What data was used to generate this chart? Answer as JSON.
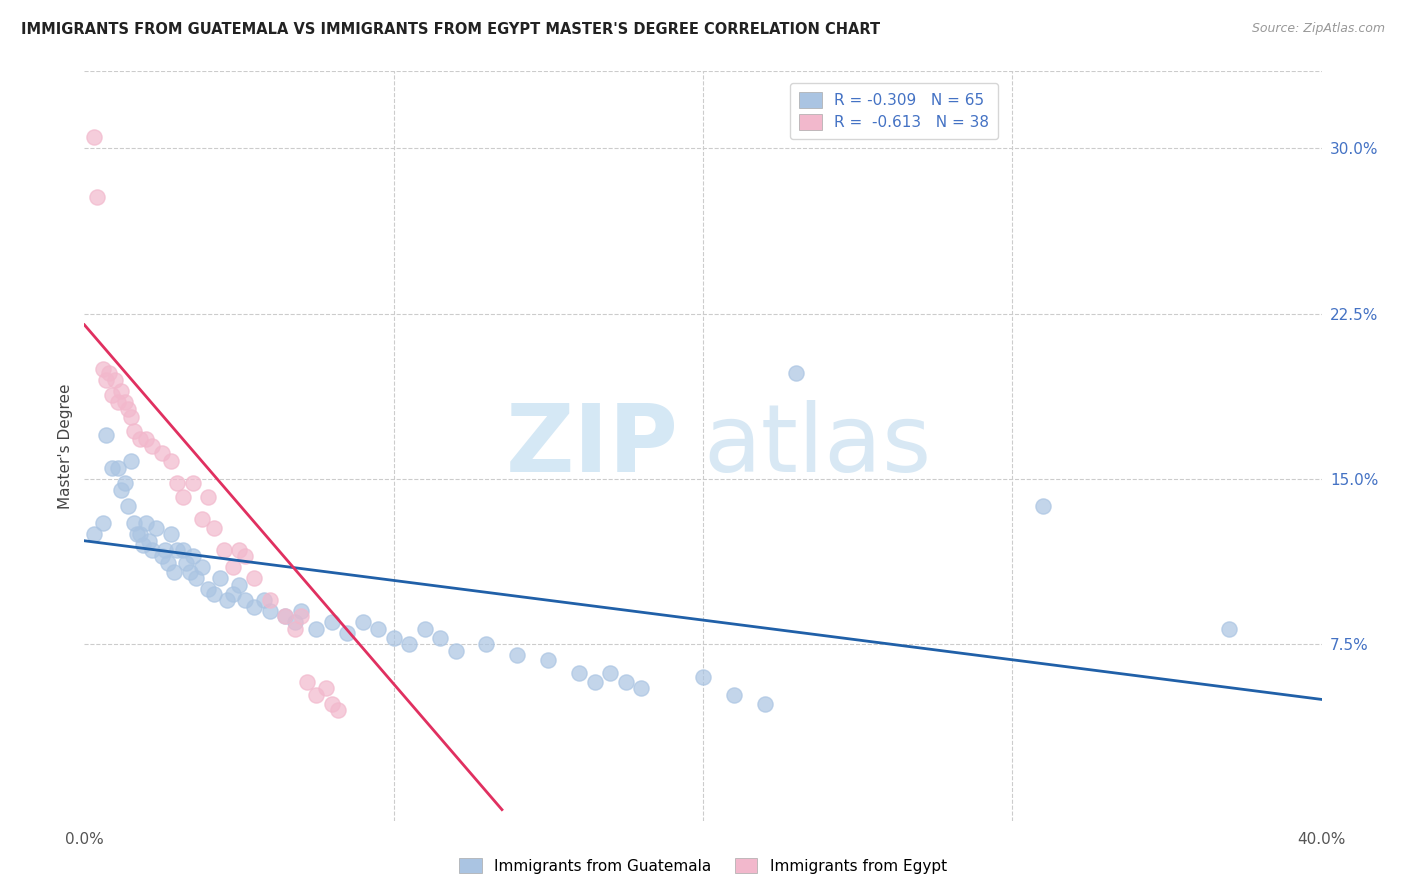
{
  "title": "IMMIGRANTS FROM GUATEMALA VS IMMIGRANTS FROM EGYPT MASTER'S DEGREE CORRELATION CHART",
  "source": "Source: ZipAtlas.com",
  "ylabel": "Master's Degree",
  "right_yticks": [
    "30.0%",
    "22.5%",
    "15.0%",
    "7.5%"
  ],
  "right_ytick_vals": [
    0.3,
    0.225,
    0.15,
    0.075
  ],
  "xlim": [
    0.0,
    0.4
  ],
  "ylim": [
    -0.005,
    0.335
  ],
  "color_guatemala": "#aac4e2",
  "color_egypt": "#f2b8cc",
  "line_color_guatemala": "#2060a8",
  "line_color_egypt": "#e03060",
  "watermark_zip": "ZIP",
  "watermark_atlas": "atlas",
  "guatemala_points": [
    [
      0.003,
      0.125
    ],
    [
      0.006,
      0.13
    ],
    [
      0.007,
      0.17
    ],
    [
      0.009,
      0.155
    ],
    [
      0.011,
      0.155
    ],
    [
      0.012,
      0.145
    ],
    [
      0.013,
      0.148
    ],
    [
      0.014,
      0.138
    ],
    [
      0.015,
      0.158
    ],
    [
      0.016,
      0.13
    ],
    [
      0.017,
      0.125
    ],
    [
      0.018,
      0.125
    ],
    [
      0.019,
      0.12
    ],
    [
      0.02,
      0.13
    ],
    [
      0.021,
      0.122
    ],
    [
      0.022,
      0.118
    ],
    [
      0.023,
      0.128
    ],
    [
      0.025,
      0.115
    ],
    [
      0.026,
      0.118
    ],
    [
      0.027,
      0.112
    ],
    [
      0.028,
      0.125
    ],
    [
      0.029,
      0.108
    ],
    [
      0.03,
      0.118
    ],
    [
      0.032,
      0.118
    ],
    [
      0.033,
      0.112
    ],
    [
      0.034,
      0.108
    ],
    [
      0.035,
      0.115
    ],
    [
      0.036,
      0.105
    ],
    [
      0.038,
      0.11
    ],
    [
      0.04,
      0.1
    ],
    [
      0.042,
      0.098
    ],
    [
      0.044,
      0.105
    ],
    [
      0.046,
      0.095
    ],
    [
      0.048,
      0.098
    ],
    [
      0.05,
      0.102
    ],
    [
      0.052,
      0.095
    ],
    [
      0.055,
      0.092
    ],
    [
      0.058,
      0.095
    ],
    [
      0.06,
      0.09
    ],
    [
      0.065,
      0.088
    ],
    [
      0.068,
      0.085
    ],
    [
      0.07,
      0.09
    ],
    [
      0.075,
      0.082
    ],
    [
      0.08,
      0.085
    ],
    [
      0.085,
      0.08
    ],
    [
      0.09,
      0.085
    ],
    [
      0.095,
      0.082
    ],
    [
      0.1,
      0.078
    ],
    [
      0.105,
      0.075
    ],
    [
      0.11,
      0.082
    ],
    [
      0.115,
      0.078
    ],
    [
      0.12,
      0.072
    ],
    [
      0.13,
      0.075
    ],
    [
      0.14,
      0.07
    ],
    [
      0.15,
      0.068
    ],
    [
      0.16,
      0.062
    ],
    [
      0.165,
      0.058
    ],
    [
      0.17,
      0.062
    ],
    [
      0.175,
      0.058
    ],
    [
      0.18,
      0.055
    ],
    [
      0.2,
      0.06
    ],
    [
      0.21,
      0.052
    ],
    [
      0.22,
      0.048
    ],
    [
      0.23,
      0.198
    ],
    [
      0.31,
      0.138
    ],
    [
      0.37,
      0.082
    ]
  ],
  "egypt_points": [
    [
      0.003,
      0.305
    ],
    [
      0.004,
      0.278
    ],
    [
      0.006,
      0.2
    ],
    [
      0.007,
      0.195
    ],
    [
      0.008,
      0.198
    ],
    [
      0.009,
      0.188
    ],
    [
      0.01,
      0.195
    ],
    [
      0.011,
      0.185
    ],
    [
      0.012,
      0.19
    ],
    [
      0.013,
      0.185
    ],
    [
      0.014,
      0.182
    ],
    [
      0.015,
      0.178
    ],
    [
      0.016,
      0.172
    ],
    [
      0.018,
      0.168
    ],
    [
      0.02,
      0.168
    ],
    [
      0.022,
      0.165
    ],
    [
      0.025,
      0.162
    ],
    [
      0.028,
      0.158
    ],
    [
      0.03,
      0.148
    ],
    [
      0.032,
      0.142
    ],
    [
      0.035,
      0.148
    ],
    [
      0.038,
      0.132
    ],
    [
      0.04,
      0.142
    ],
    [
      0.042,
      0.128
    ],
    [
      0.045,
      0.118
    ],
    [
      0.048,
      0.11
    ],
    [
      0.05,
      0.118
    ],
    [
      0.052,
      0.115
    ],
    [
      0.055,
      0.105
    ],
    [
      0.06,
      0.095
    ],
    [
      0.065,
      0.088
    ],
    [
      0.068,
      0.082
    ],
    [
      0.07,
      0.088
    ],
    [
      0.072,
      0.058
    ],
    [
      0.075,
      0.052
    ],
    [
      0.078,
      0.055
    ],
    [
      0.08,
      0.048
    ],
    [
      0.082,
      0.045
    ]
  ],
  "guatemala_line_x": [
    0.0,
    0.4
  ],
  "guatemala_line_y": [
    0.122,
    0.05
  ],
  "egypt_line_x": [
    0.0,
    0.135
  ],
  "egypt_line_y": [
    0.22,
    0.0
  ]
}
